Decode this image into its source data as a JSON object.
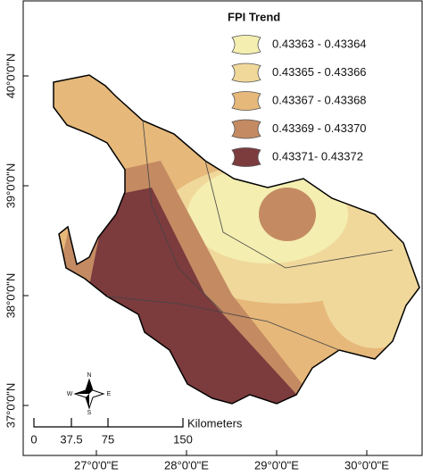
{
  "map": {
    "legend": {
      "title": "FPI Trend",
      "items": [
        {
          "label": "0.43363 - 0.43364",
          "color": "#f4eeb0"
        },
        {
          "label": "0.43365 - 0.43366",
          "color": "#f0d89b"
        },
        {
          "label": "0.43367 - 0.43368",
          "color": "#e6b87a"
        },
        {
          "label": "0.43369 - 0.43370",
          "color": "#c48a62"
        },
        {
          "label": "0.43371- 0.43372",
          "color": "#7c3b3d"
        }
      ]
    },
    "latitude_labels": [
      "40°0'0\"N",
      "39°0'0\"N",
      "38°0'0\"N",
      "37°0'0\"N"
    ],
    "longitude_labels": [
      "27°0'0\"E",
      "28°0'0\"E",
      "29°0'0\"E",
      "30°0'0\"E"
    ],
    "scale_bar": {
      "unit": "Kilometers",
      "labels": [
        "0",
        "37.5",
        "75",
        "150"
      ]
    },
    "compass": {
      "north": "N",
      "south": "S",
      "east": "E",
      "west": "W"
    }
  }
}
